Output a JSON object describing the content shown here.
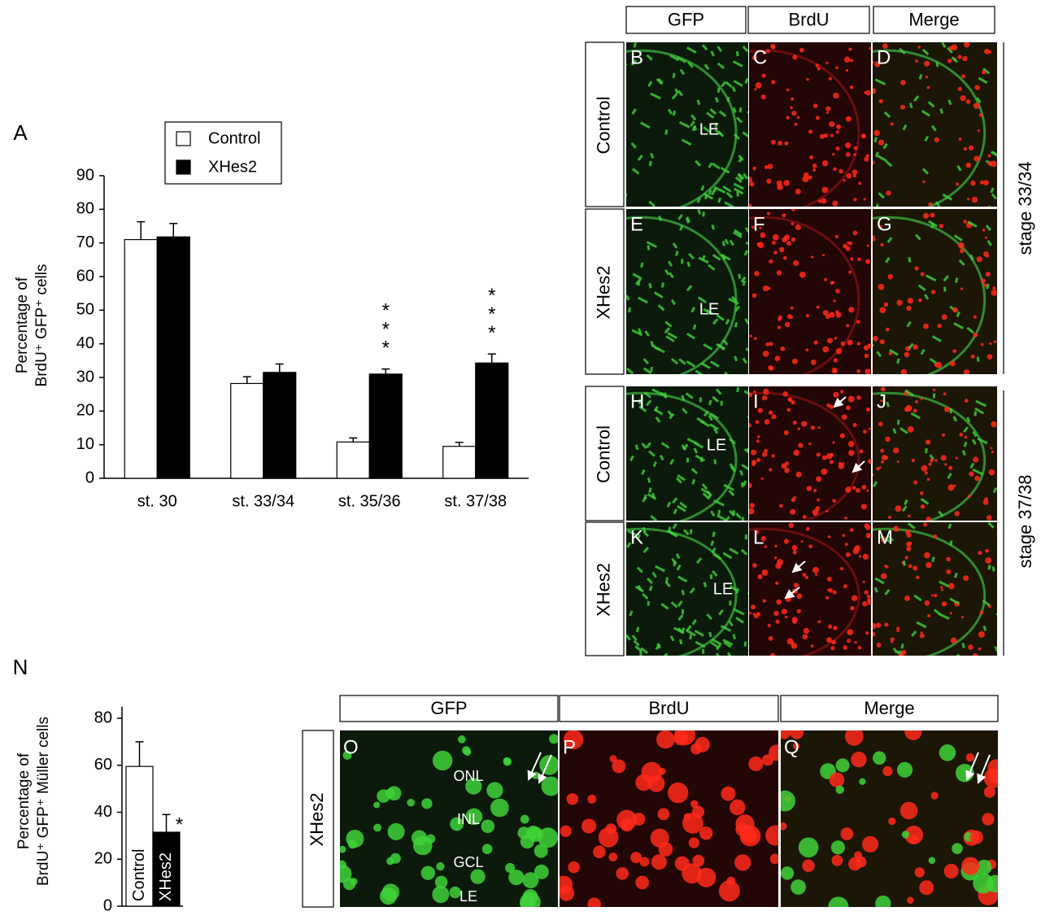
{
  "chart_data": [
    {
      "type": "bar",
      "panel": "A",
      "y_label": [
        "Percentage of",
        "BrdU⁺ GFP⁺ cells"
      ],
      "categories": [
        "st. 30",
        "st. 33/34",
        "st. 35/36",
        "st. 37/38"
      ],
      "series": [
        {
          "name": "Control",
          "color": "#ffffff",
          "values": [
            71,
            28.2,
            10.8,
            9.5
          ],
          "errors": [
            5.3,
            2,
            1.2,
            1.2
          ]
        },
        {
          "name": "XHes2",
          "color": "#000000",
          "values": [
            71.8,
            31.5,
            31,
            34.3
          ],
          "errors": [
            4,
            2.5,
            1.5,
            2.7
          ],
          "labels": [
            null,
            null,
            "***",
            "***"
          ]
        }
      ],
      "ylim": [
        0,
        90
      ],
      "yticks": [
        0,
        10,
        20,
        30,
        40,
        50,
        60,
        70,
        80,
        90
      ],
      "legend": "top"
    },
    {
      "type": "bar",
      "panel": "N",
      "y_label": [
        "Percentage of",
        "BrdU⁺ GFP⁺ Müller cells"
      ],
      "categories": [
        "Control",
        "XHes2"
      ],
      "values": [
        59.5,
        31.5
      ],
      "errors": [
        10.5,
        7.5
      ],
      "colors": [
        "#ffffff",
        "#000000"
      ],
      "labels": [
        null,
        "*"
      ],
      "ylim": [
        0,
        85
      ],
      "yticks": [
        0,
        20,
        40,
        60,
        80
      ]
    }
  ],
  "image_panels": [
    {
      "columns": [
        "GFP",
        "BrdU",
        "Merge"
      ],
      "rows": [
        {
          "label": "Control",
          "panels": [
            "B",
            "C",
            "D"
          ],
          "marker": "LE"
        },
        {
          "label": "XHes2",
          "panels": [
            "E",
            "F",
            "G"
          ],
          "marker": "LE"
        },
        {
          "label": "Control",
          "panels": [
            "H",
            "I",
            "J"
          ],
          "marker": "LE"
        },
        {
          "label": "XHes2",
          "panels": [
            "K",
            "L",
            "M"
          ],
          "marker": "LE"
        }
      ],
      "stages": [
        "stage 33/34",
        "stage 37/38"
      ]
    },
    {
      "columns": [
        "GFP",
        "BrdU",
        "Merge"
      ],
      "rows": [
        {
          "label": "XHes2",
          "panels": [
            "O",
            "P",
            "Q"
          ]
        }
      ],
      "layers": [
        "ONL",
        "INL",
        "GCL",
        "LE"
      ]
    }
  ]
}
